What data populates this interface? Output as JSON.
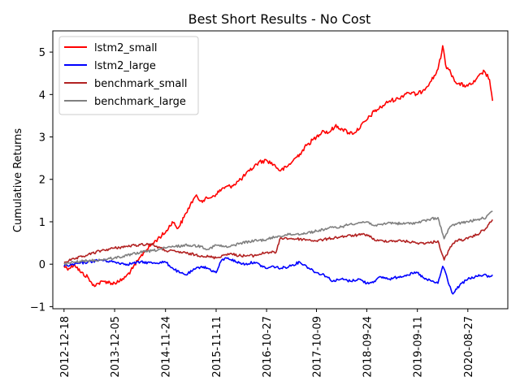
{
  "chart_data": {
    "type": "line",
    "title": "Best Short Results - No Cost",
    "xlabel": "",
    "ylabel": "Cumulative Returns",
    "x_tick_labels": [
      "2012-12-18",
      "2013-12-05",
      "2014-11-24",
      "2015-11-11",
      "2016-10-27",
      "2017-10-09",
      "2018-09-24",
      "2019-09-11",
      "2020-08-27"
    ],
    "y_ticks": [
      -1,
      0,
      1,
      2,
      3,
      4,
      5
    ],
    "ylim": [
      -1.05,
      5.5
    ],
    "xlim": [
      "2012-10-01",
      "2021-06-01"
    ],
    "grid": false,
    "legend_position": "top-left",
    "series": [
      {
        "name": "lstm2_small",
        "color": "#ff0000",
        "points": [
          [
            "2012-12-18",
            -0.05
          ],
          [
            "2013-01-20",
            -0.1
          ],
          [
            "2013-03-01",
            0.0
          ],
          [
            "2013-04-15",
            -0.2
          ],
          [
            "2013-06-01",
            -0.3
          ],
          [
            "2013-07-05",
            -0.5
          ],
          [
            "2013-08-15",
            -0.45
          ],
          [
            "2013-10-01",
            -0.4
          ],
          [
            "2013-11-15",
            -0.45
          ],
          [
            "2014-01-01",
            -0.42
          ],
          [
            "2014-02-20",
            -0.3
          ],
          [
            "2014-04-10",
            -0.1
          ],
          [
            "2014-05-20",
            0.1
          ],
          [
            "2014-07-01",
            0.3
          ],
          [
            "2014-08-15",
            0.45
          ],
          [
            "2014-10-01",
            0.6
          ],
          [
            "2014-11-24",
            0.75
          ],
          [
            "2015-01-10",
            1.0
          ],
          [
            "2015-02-20",
            0.85
          ],
          [
            "2015-04-01",
            1.1
          ],
          [
            "2015-05-15",
            1.4
          ],
          [
            "2015-06-20",
            1.6
          ],
          [
            "2015-08-01",
            1.5
          ],
          [
            "2015-09-15",
            1.55
          ],
          [
            "2015-11-11",
            1.65
          ],
          [
            "2016-01-01",
            1.8
          ],
          [
            "2016-03-01",
            1.85
          ],
          [
            "2016-05-01",
            2.0
          ],
          [
            "2016-07-01",
            2.2
          ],
          [
            "2016-09-01",
            2.4
          ],
          [
            "2016-10-27",
            2.45
          ],
          [
            "2016-12-15",
            2.35
          ],
          [
            "2017-02-01",
            2.2
          ],
          [
            "2017-03-20",
            2.3
          ],
          [
            "2017-05-01",
            2.45
          ],
          [
            "2017-06-15",
            2.6
          ],
          [
            "2017-08-01",
            2.8
          ],
          [
            "2017-10-09",
            3.0
          ],
          [
            "2017-11-20",
            3.15
          ],
          [
            "2018-01-01",
            3.1
          ],
          [
            "2018-02-15",
            3.25
          ],
          [
            "2018-04-01",
            3.2
          ],
          [
            "2018-05-20",
            3.1
          ],
          [
            "2018-07-01",
            3.1
          ],
          [
            "2018-09-24",
            3.4
          ],
          [
            "2018-11-15",
            3.6
          ],
          [
            "2019-01-01",
            3.7
          ],
          [
            "2019-03-01",
            3.85
          ],
          [
            "2019-05-01",
            3.9
          ],
          [
            "2019-07-01",
            4.05
          ],
          [
            "2019-09-11",
            4.0
          ],
          [
            "2019-10-20",
            4.1
          ],
          [
            "2019-12-10",
            4.3
          ],
          [
            "2020-01-20",
            4.5
          ],
          [
            "2020-02-20",
            4.85
          ],
          [
            "2020-03-05",
            5.15
          ],
          [
            "2020-03-25",
            4.7
          ],
          [
            "2020-05-01",
            4.5
          ],
          [
            "2020-06-15",
            4.25
          ],
          [
            "2020-08-27",
            4.2
          ],
          [
            "2020-10-15",
            4.3
          ],
          [
            "2020-12-01",
            4.5
          ],
          [
            "2020-12-20",
            4.55
          ],
          [
            "2021-01-25",
            4.35
          ],
          [
            "2021-02-15",
            3.85
          ]
        ]
      },
      {
        "name": "lstm2_large",
        "color": "#0000ff",
        "points": [
          [
            "2012-12-18",
            -0.05
          ],
          [
            "2013-03-01",
            0.0
          ],
          [
            "2013-06-01",
            0.05
          ],
          [
            "2013-09-01",
            0.1
          ],
          [
            "2013-12-05",
            0.05
          ],
          [
            "2014-03-01",
            0.0
          ],
          [
            "2014-06-01",
            0.05
          ],
          [
            "2014-09-01",
            0.03
          ],
          [
            "2014-11-24",
            0.05
          ],
          [
            "2015-01-15",
            -0.1
          ],
          [
            "2015-03-01",
            -0.2
          ],
          [
            "2015-04-15",
            -0.25
          ],
          [
            "2015-06-01",
            -0.15
          ],
          [
            "2015-08-01",
            -0.05
          ],
          [
            "2015-09-15",
            -0.1
          ],
          [
            "2015-11-11",
            -0.2
          ],
          [
            "2015-12-20",
            0.1
          ],
          [
            "2016-02-01",
            0.15
          ],
          [
            "2016-04-01",
            0.05
          ],
          [
            "2016-06-01",
            0.0
          ],
          [
            "2016-08-01",
            0.05
          ],
          [
            "2016-10-27",
            -0.1
          ],
          [
            "2016-12-15",
            -0.05
          ],
          [
            "2017-02-01",
            -0.1
          ],
          [
            "2017-04-01",
            -0.05
          ],
          [
            "2017-06-15",
            0.05
          ],
          [
            "2017-08-01",
            -0.05
          ],
          [
            "2017-10-09",
            -0.2
          ],
          [
            "2017-12-01",
            -0.25
          ],
          [
            "2018-02-01",
            -0.4
          ],
          [
            "2018-04-01",
            -0.35
          ],
          [
            "2018-06-01",
            -0.4
          ],
          [
            "2018-08-01",
            -0.35
          ],
          [
            "2018-09-24",
            -0.45
          ],
          [
            "2018-11-15",
            -0.4
          ],
          [
            "2019-01-01",
            -0.3
          ],
          [
            "2019-03-01",
            -0.35
          ],
          [
            "2019-05-01",
            -0.3
          ],
          [
            "2019-07-01",
            -0.25
          ],
          [
            "2019-09-11",
            -0.2
          ],
          [
            "2019-11-01",
            -0.35
          ],
          [
            "2019-12-20",
            -0.4
          ],
          [
            "2020-02-01",
            -0.45
          ],
          [
            "2020-03-05",
            -0.05
          ],
          [
            "2020-03-25",
            -0.2
          ],
          [
            "2020-04-20",
            -0.5
          ],
          [
            "2020-05-15",
            -0.7
          ],
          [
            "2020-07-01",
            -0.5
          ],
          [
            "2020-08-27",
            -0.35
          ],
          [
            "2020-10-15",
            -0.3
          ],
          [
            "2020-12-15",
            -0.25
          ],
          [
            "2021-01-25",
            -0.3
          ],
          [
            "2021-02-15",
            -0.25
          ]
        ]
      },
      {
        "name": "benchmark_small",
        "color": "#b22222",
        "points": [
          [
            "2012-12-18",
            0.05
          ],
          [
            "2013-03-01",
            0.12
          ],
          [
            "2013-06-01",
            0.22
          ],
          [
            "2013-09-01",
            0.32
          ],
          [
            "2013-12-05",
            0.38
          ],
          [
            "2014-03-01",
            0.42
          ],
          [
            "2014-06-01",
            0.46
          ],
          [
            "2014-08-15",
            0.48
          ],
          [
            "2014-11-24",
            0.32
          ],
          [
            "2015-02-01",
            0.3
          ],
          [
            "2015-05-01",
            0.25
          ],
          [
            "2015-08-01",
            0.2
          ],
          [
            "2015-11-11",
            0.15
          ],
          [
            "2016-02-01",
            0.25
          ],
          [
            "2016-05-01",
            0.2
          ],
          [
            "2016-08-01",
            0.2
          ],
          [
            "2016-10-27",
            0.28
          ],
          [
            "2017-01-01",
            0.28
          ],
          [
            "2017-02-01",
            0.62
          ],
          [
            "2017-05-01",
            0.6
          ],
          [
            "2017-08-01",
            0.58
          ],
          [
            "2017-10-09",
            0.55
          ],
          [
            "2018-01-01",
            0.6
          ],
          [
            "2018-04-01",
            0.65
          ],
          [
            "2018-07-01",
            0.68
          ],
          [
            "2018-09-24",
            0.7
          ],
          [
            "2018-12-01",
            0.55
          ],
          [
            "2019-03-01",
            0.55
          ],
          [
            "2019-06-01",
            0.55
          ],
          [
            "2019-09-11",
            0.5
          ],
          [
            "2019-12-01",
            0.5
          ],
          [
            "2020-02-01",
            0.55
          ],
          [
            "2020-03-15",
            0.1
          ],
          [
            "2020-04-20",
            0.35
          ],
          [
            "2020-06-01",
            0.55
          ],
          [
            "2020-08-27",
            0.6
          ],
          [
            "2020-11-01",
            0.7
          ],
          [
            "2021-01-01",
            0.85
          ],
          [
            "2021-02-15",
            1.05
          ]
        ]
      },
      {
        "name": "benchmark_large",
        "color": "#808080",
        "points": [
          [
            "2012-12-18",
            0.0
          ],
          [
            "2013-03-01",
            0.05
          ],
          [
            "2013-06-01",
            0.08
          ],
          [
            "2013-09-01",
            0.1
          ],
          [
            "2013-12-05",
            0.15
          ],
          [
            "2014-03-01",
            0.2
          ],
          [
            "2014-06-01",
            0.28
          ],
          [
            "2014-09-01",
            0.32
          ],
          [
            "2014-11-24",
            0.38
          ],
          [
            "2015-02-01",
            0.42
          ],
          [
            "2015-05-01",
            0.45
          ],
          [
            "2015-08-01",
            0.42
          ],
          [
            "2015-09-15",
            0.35
          ],
          [
            "2015-11-11",
            0.45
          ],
          [
            "2016-02-01",
            0.4
          ],
          [
            "2016-05-01",
            0.5
          ],
          [
            "2016-08-01",
            0.55
          ],
          [
            "2016-10-27",
            0.58
          ],
          [
            "2017-01-01",
            0.65
          ],
          [
            "2017-04-01",
            0.7
          ],
          [
            "2017-07-01",
            0.72
          ],
          [
            "2017-10-09",
            0.78
          ],
          [
            "2018-01-01",
            0.85
          ],
          [
            "2018-04-01",
            0.88
          ],
          [
            "2018-06-01",
            0.95
          ],
          [
            "2018-09-24",
            1.0
          ],
          [
            "2018-12-01",
            0.9
          ],
          [
            "2019-03-01",
            0.98
          ],
          [
            "2019-06-01",
            0.95
          ],
          [
            "2019-09-11",
            0.98
          ],
          [
            "2019-12-01",
            1.05
          ],
          [
            "2020-02-01",
            1.1
          ],
          [
            "2020-03-15",
            0.6
          ],
          [
            "2020-04-20",
            0.85
          ],
          [
            "2020-06-01",
            0.95
          ],
          [
            "2020-08-27",
            1.0
          ],
          [
            "2020-11-01",
            1.05
          ],
          [
            "2021-01-01",
            1.1
          ],
          [
            "2021-02-15",
            1.25
          ]
        ]
      }
    ]
  }
}
